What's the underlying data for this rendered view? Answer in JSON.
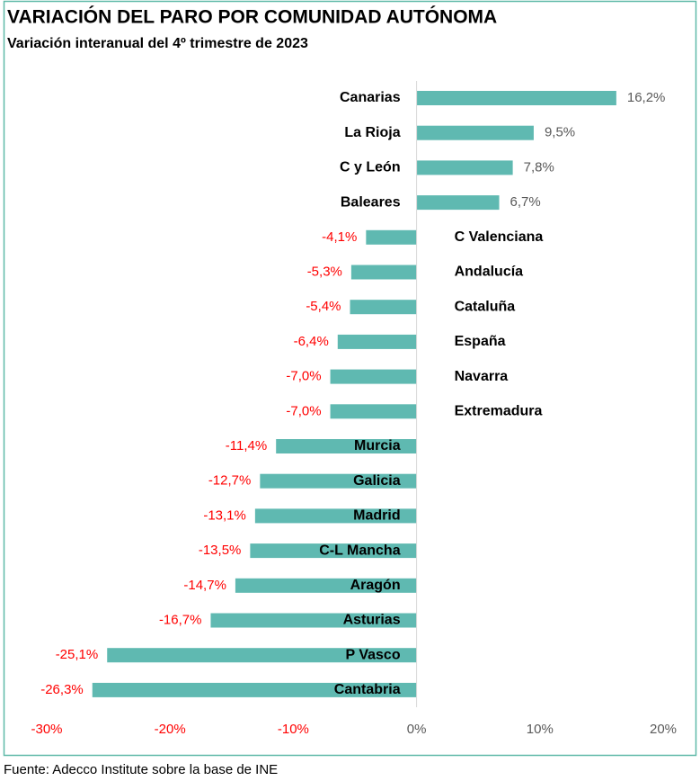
{
  "chart_data": {
    "type": "barh",
    "title": "VARIACIÓN DEL PARO POR COMUNIDAD AUTÓNOMA",
    "subtitle": "Variación interanual del 4º trimestre de 2023",
    "source": "Fuente: Adecco Institute sobre la base de INE",
    "categories": [
      "Canarias",
      "La Rioja",
      "C y León",
      "Baleares",
      "C Valenciana",
      "Andalucía",
      "Cataluña",
      "España",
      "Navarra",
      "Extremadura",
      "Murcia",
      "Galicia",
      "Madrid",
      "C-L Mancha",
      "Aragón",
      "Asturias",
      "P Vasco",
      "Cantabria"
    ],
    "values": [
      16.2,
      9.5,
      7.8,
      6.7,
      -4.1,
      -5.3,
      -5.4,
      -6.4,
      -7.0,
      -7.0,
      -11.4,
      -12.7,
      -13.1,
      -13.5,
      -14.7,
      -16.7,
      -25.1,
      -26.3
    ],
    "value_labels": [
      "16,2%",
      "9,5%",
      "7,8%",
      "6,7%",
      "-4,1%",
      "-5,3%",
      "-5,4%",
      "-6,4%",
      "-7,0%",
      "-7,0%",
      "-11,4%",
      "-12,7%",
      "-13,1%",
      "-13,5%",
      "-14,7%",
      "-16,7%",
      "-25,1%",
      "-26,3%"
    ],
    "color": "#5fb9b1",
    "positive_label_color": "#595959",
    "negative_label_color": "#ff0000",
    "xlim": [
      -30,
      20
    ],
    "xticks": [
      {
        "value": -30,
        "label": "-30%"
      },
      {
        "value": -20,
        "label": "-20%"
      },
      {
        "value": -10,
        "label": "-10%"
      },
      {
        "value": 0,
        "label": "0%"
      },
      {
        "value": 10,
        "label": "10%"
      },
      {
        "value": 20,
        "label": "20%"
      }
    ]
  }
}
